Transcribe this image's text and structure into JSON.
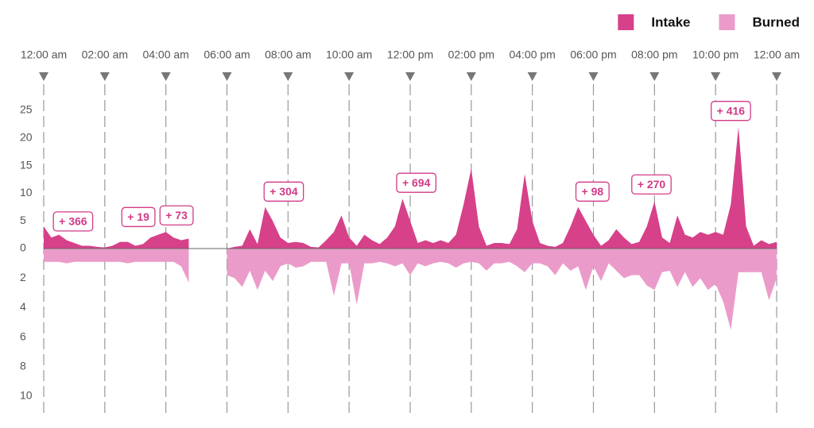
{
  "chart_data": {
    "type": "mirrored-area",
    "x": [
      0,
      0.25,
      0.5,
      0.75,
      1,
      1.25,
      1.5,
      1.75,
      2,
      2.25,
      2.5,
      2.75,
      3,
      3.25,
      3.5,
      3.75,
      4,
      4.25,
      4.5,
      4.75,
      5,
      5.25,
      5.5,
      5.75,
      6,
      6.25,
      6.5,
      6.75,
      7,
      7.25,
      7.5,
      7.75,
      8,
      8.25,
      8.5,
      8.75,
      9,
      9.25,
      9.5,
      9.75,
      10,
      10.25,
      10.5,
      10.75,
      11,
      11.25,
      11.5,
      11.75,
      12,
      12.25,
      12.5,
      12.75,
      13,
      13.25,
      13.5,
      13.75,
      14,
      14.25,
      14.5,
      14.75,
      15,
      15.25,
      15.5,
      15.75,
      16,
      16.25,
      16.5,
      16.75,
      17,
      17.25,
      17.5,
      17.75,
      18,
      18.25,
      18.5,
      18.75,
      19,
      19.25,
      19.5,
      19.75,
      20,
      20.25,
      20.5,
      20.75,
      21,
      21.25,
      21.5,
      21.75,
      22,
      22.25,
      22.5,
      22.75,
      23,
      23.25,
      23.5,
      23.75,
      24
    ],
    "series": [
      {
        "name": "Intake",
        "color": "#d6418a",
        "values": [
          4,
          2,
          2.5,
          1.5,
          1,
          0.5,
          0.5,
          0.3,
          0.2,
          0.5,
          1.2,
          1.2,
          0.5,
          0.8,
          2,
          2.5,
          3,
          2,
          1.5,
          1.8,
          null,
          null,
          null,
          null,
          0,
          0.3,
          0.5,
          3.5,
          0.8,
          7.5,
          5,
          2,
          1,
          1.2,
          1,
          0.3,
          0.2,
          1.5,
          3,
          6,
          2,
          0.5,
          2.5,
          1.5,
          0.8,
          2,
          4,
          9,
          5,
          1,
          1.5,
          1,
          1.5,
          1,
          2.5,
          8,
          14.5,
          4,
          0.5,
          1,
          1,
          0.8,
          3.5,
          13.5,
          5,
          1,
          0.5,
          0.3,
          1,
          4,
          7.5,
          5,
          2.5,
          0.5,
          1.5,
          3.5,
          2,
          0.8,
          1.2,
          4,
          8.5,
          2,
          1,
          6,
          2.5,
          2,
          3,
          2.5,
          3,
          2.5,
          8,
          22,
          4,
          0.5,
          1.5,
          0.8,
          1.2
        ]
      },
      {
        "name": "Burned",
        "color": "#eb9bc9",
        "axis": "y2",
        "values": [
          0.9,
          0.9,
          0.9,
          1.0,
          0.9,
          0.9,
          0.9,
          0.9,
          0.9,
          0.9,
          0.9,
          1.0,
          0.9,
          0.9,
          0.9,
          0.9,
          0.9,
          0.9,
          1.2,
          2.3,
          null,
          null,
          null,
          null,
          1.8,
          2.0,
          2.6,
          1.5,
          2.8,
          1.5,
          2.2,
          1.2,
          1.0,
          1.3,
          1.2,
          0.9,
          0.9,
          0.9,
          3.2,
          1.0,
          1.0,
          3.8,
          1.0,
          1.0,
          0.9,
          1.0,
          1.2,
          1.0,
          1.8,
          1.0,
          1.2,
          1.0,
          0.9,
          1.0,
          1.3,
          1.0,
          0.9,
          1.0,
          1.5,
          1.0,
          1.0,
          0.9,
          1.2,
          1.6,
          1.0,
          1.0,
          1.2,
          1.8,
          1.0,
          1.5,
          1.2,
          2.8,
          1.2,
          2.2,
          1.0,
          1.5,
          2.0,
          1.8,
          1.8,
          2.5,
          2.8,
          1.6,
          1.5,
          2.6,
          1.6,
          2.6,
          2.0,
          2.8,
          2.4,
          3.6,
          5.5,
          1.6,
          1.6,
          1.6,
          1.6,
          3.5,
          2.0
        ]
      }
    ],
    "xlim": [
      0,
      24
    ],
    "xticks": [
      {
        "value": 0,
        "label": "12:00 am"
      },
      {
        "value": 2,
        "label": "02:00 am"
      },
      {
        "value": 4,
        "label": "04:00 am"
      },
      {
        "value": 6,
        "label": "06:00 am"
      },
      {
        "value": 8,
        "label": "08:00 am"
      },
      {
        "value": 10,
        "label": "10:00 am"
      },
      {
        "value": 12,
        "label": "12:00 pm"
      },
      {
        "value": 14,
        "label": "02:00 pm"
      },
      {
        "value": 16,
        "label": "04:00 pm"
      },
      {
        "value": 18,
        "label": "06:00 pm"
      },
      {
        "value": 20,
        "label": "08:00 pm"
      },
      {
        "value": 22,
        "label": "10:00 pm"
      },
      {
        "value": 24,
        "label": "12:00 am"
      }
    ],
    "ylim": [
      0,
      25
    ],
    "yticks": [
      0,
      5,
      10,
      15,
      20,
      25
    ],
    "y2lim": [
      0,
      10
    ],
    "y2ticks": [
      2,
      4,
      6,
      8,
      10
    ],
    "annotations": [
      {
        "x": 0.96,
        "y": 4.9,
        "label": "+ 366"
      },
      {
        "x": 3.1,
        "y": 5.7,
        "label": "+ 19"
      },
      {
        "x": 4.35,
        "y": 6,
        "label": "+ 73"
      },
      {
        "x": 7.86,
        "y": 10.3,
        "label": "+ 304"
      },
      {
        "x": 12.2,
        "y": 11.9,
        "label": "+ 694"
      },
      {
        "x": 17.97,
        "y": 10.3,
        "label": "+ 98"
      },
      {
        "x": 19.9,
        "y": 11.6,
        "label": "+ 270"
      },
      {
        "x": 22.5,
        "y": 24.9,
        "label": "+ 416"
      }
    ],
    "legend": "top-right"
  }
}
